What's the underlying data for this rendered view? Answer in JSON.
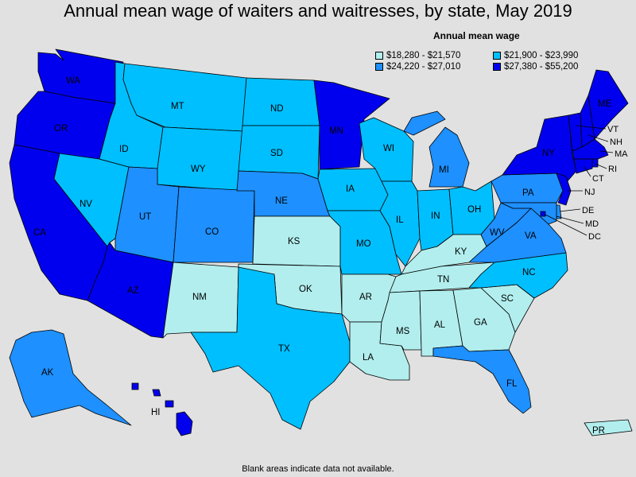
{
  "title": "Annual mean wage of waiters and waitresses, by state, May 2019",
  "legend": {
    "title": "Annual mean wage",
    "items": [
      {
        "range": "$18,280 - $21,570",
        "color": "#b2eeee"
      },
      {
        "range": "$21,900 - $23,990",
        "color": "#00bfff"
      },
      {
        "range": "$24,220 - $27,010",
        "color": "#1e90ff"
      },
      {
        "range": "$27,380 - $55,200",
        "color": "#0000ee"
      }
    ]
  },
  "footnote": "Blank areas indicate data not available.",
  "states": {
    "WA": {
      "label": "WA",
      "class": 3
    },
    "OR": {
      "label": "OR",
      "class": 3
    },
    "CA": {
      "label": "CA",
      "class": 3
    },
    "NV": {
      "label": "NV",
      "class": 1
    },
    "ID": {
      "label": "ID",
      "class": 1
    },
    "MT": {
      "label": "MT",
      "class": 1
    },
    "WY": {
      "label": "WY",
      "class": 1
    },
    "UT": {
      "label": "UT",
      "class": 2
    },
    "CO": {
      "label": "CO",
      "class": 2
    },
    "AZ": {
      "label": "AZ",
      "class": 3
    },
    "NM": {
      "label": "NM",
      "class": 0
    },
    "ND": {
      "label": "ND",
      "class": 1
    },
    "SD": {
      "label": "SD",
      "class": 1
    },
    "NE": {
      "label": "NE",
      "class": 2
    },
    "KS": {
      "label": "KS",
      "class": 0
    },
    "OK": {
      "label": "OK",
      "class": 0
    },
    "TX": {
      "label": "TX",
      "class": 1
    },
    "MN": {
      "label": "MN",
      "class": 3
    },
    "IA": {
      "label": "IA",
      "class": 1
    },
    "MO": {
      "label": "MO",
      "class": 1
    },
    "AR": {
      "label": "AR",
      "class": 0
    },
    "LA": {
      "label": "LA",
      "class": 0
    },
    "WI": {
      "label": "WI",
      "class": 1
    },
    "IL": {
      "label": "IL",
      "class": 1
    },
    "MI": {
      "label": "MI",
      "class": 2
    },
    "IN": {
      "label": "IN",
      "class": 1
    },
    "OH": {
      "label": "OH",
      "class": 1
    },
    "KY": {
      "label": "KY",
      "class": 0
    },
    "TN": {
      "label": "TN",
      "class": 0
    },
    "MS": {
      "label": "MS",
      "class": 0
    },
    "AL": {
      "label": "AL",
      "class": 0
    },
    "GA": {
      "label": "GA",
      "class": 0
    },
    "FL": {
      "label": "FL",
      "class": 2
    },
    "SC": {
      "label": "SC",
      "class": 0
    },
    "NC": {
      "label": "NC",
      "class": 1
    },
    "VA": {
      "label": "VA",
      "class": 2
    },
    "WV": {
      "label": "WV",
      "class": 2
    },
    "PA": {
      "label": "PA",
      "class": 2
    },
    "NY": {
      "label": "NY",
      "class": 3
    },
    "VT": {
      "label": "VT",
      "class": 3
    },
    "NH": {
      "label": "NH",
      "class": 3
    },
    "ME": {
      "label": "ME",
      "class": 3
    },
    "MA": {
      "label": "MA",
      "class": 3
    },
    "RI": {
      "label": "RI",
      "class": 3
    },
    "CT": {
      "label": "CT",
      "class": 3
    },
    "NJ": {
      "label": "NJ",
      "class": 3
    },
    "DE": {
      "label": "DE",
      "class": 2
    },
    "MD": {
      "label": "MD",
      "class": 2
    },
    "DC": {
      "label": "DC",
      "class": 3
    },
    "AK": {
      "label": "AK",
      "class": 2
    },
    "HI": {
      "label": "HI",
      "class": 3
    },
    "PR": {
      "label": "PR",
      "class": 0
    }
  }
}
